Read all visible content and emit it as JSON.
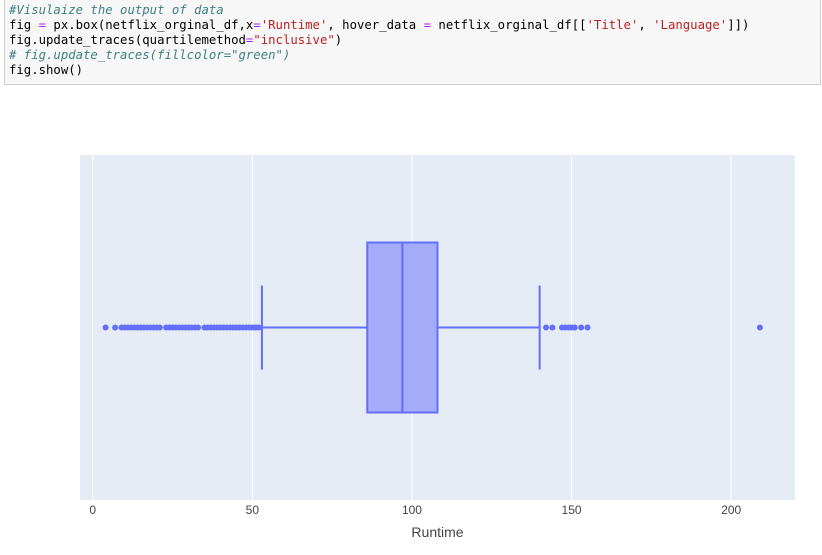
{
  "code_cell": {
    "lines": [
      [
        {
          "t": "#Visulaize the output of data",
          "c": "comment"
        }
      ],
      [
        {
          "t": "fig ",
          "c": ""
        },
        {
          "t": "=",
          "c": "op"
        },
        {
          "t": " px.box(netflix_orginal_df,x",
          "c": ""
        },
        {
          "t": "=",
          "c": "op"
        },
        {
          "t": "'Runtime'",
          "c": "str"
        },
        {
          "t": ", hover_data ",
          "c": ""
        },
        {
          "t": "=",
          "c": "op"
        },
        {
          "t": " netflix_orginal_df[[",
          "c": ""
        },
        {
          "t": "'Title'",
          "c": "str"
        },
        {
          "t": ", ",
          "c": ""
        },
        {
          "t": "'Language'",
          "c": "str"
        },
        {
          "t": "]])",
          "c": ""
        }
      ],
      [
        {
          "t": "fig.update_traces(quartilemethod",
          "c": ""
        },
        {
          "t": "=",
          "c": "op"
        },
        {
          "t": "\"inclusive\"",
          "c": "str"
        },
        {
          "t": ")",
          "c": ""
        }
      ],
      [
        {
          "t": "# fig.update_traces(fillcolor=\"green\")",
          "c": "comment"
        }
      ],
      [
        {
          "t": "fig.show()",
          "c": ""
        }
      ]
    ]
  },
  "chart_data": {
    "type": "box",
    "orientation": "horizontal",
    "x_label": "Runtime",
    "xlim": [
      -4,
      220
    ],
    "x_ticks": [
      0,
      50,
      100,
      150,
      200
    ],
    "grid": true,
    "colors": {
      "plot_bg": "#e5ecf6",
      "grid": "#ffffff",
      "box_line": "#636efa",
      "box_fill": "#a4abf8"
    },
    "box": {
      "lower_fence": 53,
      "q1": 86,
      "median": 97,
      "q3": 108,
      "upper_fence": 140
    },
    "outliers": [
      4,
      7,
      9,
      10,
      11,
      12,
      13,
      14,
      15,
      16,
      17,
      18,
      19,
      20,
      21,
      23,
      24,
      25,
      26,
      27,
      28,
      29,
      30,
      31,
      32,
      33,
      35,
      36,
      37,
      38,
      39,
      40,
      41,
      42,
      43,
      44,
      45,
      46,
      47,
      48,
      49,
      50,
      51,
      52,
      142,
      144,
      147,
      148,
      149,
      150,
      151,
      153,
      155,
      209
    ]
  }
}
